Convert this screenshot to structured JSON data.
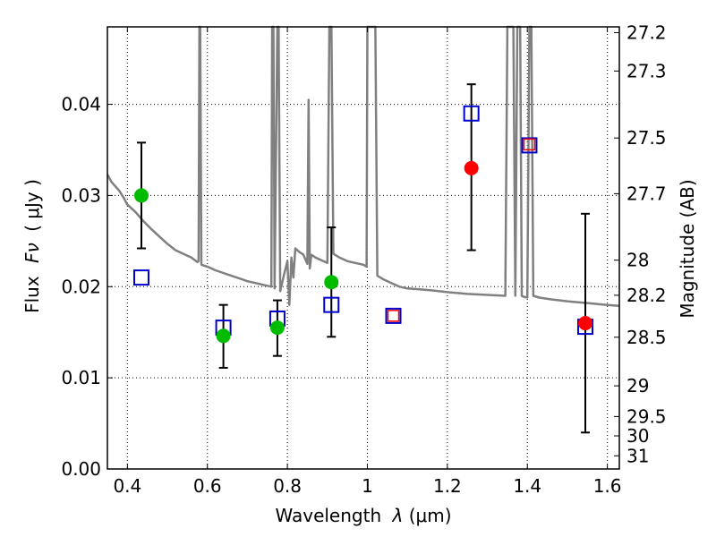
{
  "chart_data": {
    "type": "scatter",
    "xlabel_prefix": "Wavelength",
    "xlabel_symbol": "λ",
    "xlabel_unit": "(μm)",
    "ylabel_prefix": "Flux",
    "ylabel_symbol": "Fν",
    "ylabel_unit": "( μJy )",
    "y2label": "Magnitude (AB)",
    "xlim": [
      0.35,
      1.63
    ],
    "ylim": [
      0.0,
      0.0485
    ],
    "grid": true,
    "x_ticks": [
      0.4,
      0.6,
      0.8,
      1.0,
      1.2,
      1.4,
      1.6
    ],
    "x_tick_labels": [
      "0.4",
      "0.6",
      "0.8",
      "1",
      "1.2",
      "1.4",
      "1.6"
    ],
    "y_ticks": [
      0.0,
      0.01,
      0.02,
      0.03,
      0.04
    ],
    "y_tick_labels": [
      "0.00",
      "0.01",
      "0.02",
      "0.03",
      "0.04"
    ],
    "y2_ticks": [
      27.2,
      27.3,
      27.5,
      27.7,
      28,
      28.2,
      28.5,
      29,
      29.5,
      30,
      31
    ],
    "y2_tick_labels": [
      "27.2",
      "27.3",
      "27.5",
      "27.7",
      "28",
      "28.2",
      "28.5",
      "29",
      "29.5",
      "30",
      "31"
    ],
    "colors": {
      "model": "#808080",
      "detection": "#00bb00",
      "measurement": "#ff0000",
      "model_band": "#0000cc",
      "errorbar": "#000000"
    },
    "series": [
      {
        "kind": "model_sed",
        "points": [
          [
            0.35,
            0.0323
          ],
          [
            0.36,
            0.0315
          ],
          [
            0.37,
            0.031
          ],
          [
            0.38,
            0.0305
          ],
          [
            0.39,
            0.0298
          ],
          [
            0.4,
            0.029
          ],
          [
            0.42,
            0.0282
          ],
          [
            0.44,
            0.0272
          ],
          [
            0.46,
            0.0263
          ],
          [
            0.48,
            0.0255
          ],
          [
            0.5,
            0.0247
          ],
          [
            0.52,
            0.024
          ],
          [
            0.54,
            0.0236
          ],
          [
            0.56,
            0.0232
          ],
          [
            0.575,
            0.0227
          ],
          [
            0.578,
            0.0228
          ],
          [
            0.58,
            0.0485
          ],
          [
            0.582,
            0.0485
          ],
          [
            0.585,
            0.0224
          ],
          [
            0.6,
            0.0222
          ],
          [
            0.62,
            0.0218
          ],
          [
            0.64,
            0.0215
          ],
          [
            0.66,
            0.0212
          ],
          [
            0.68,
            0.0209
          ],
          [
            0.7,
            0.0206
          ],
          [
            0.72,
            0.0204
          ],
          [
            0.74,
            0.0202
          ],
          [
            0.76,
            0.02
          ],
          [
            0.762,
            0.0485
          ],
          [
            0.765,
            0.0485
          ],
          [
            0.768,
            0.0198
          ],
          [
            0.775,
            0.0485
          ],
          [
            0.778,
            0.0485
          ],
          [
            0.782,
            0.0195
          ],
          [
            0.79,
            0.021
          ],
          [
            0.8,
            0.0228
          ],
          [
            0.805,
            0.018
          ],
          [
            0.81,
            0.0232
          ],
          [
            0.815,
            0.021
          ],
          [
            0.82,
            0.0242
          ],
          [
            0.83,
            0.0238
          ],
          [
            0.84,
            0.0235
          ],
          [
            0.85,
            0.0225
          ],
          [
            0.853,
            0.0405
          ],
          [
            0.856,
            0.022
          ],
          [
            0.86,
            0.0235
          ],
          [
            0.87,
            0.0232
          ],
          [
            0.88,
            0.023
          ],
          [
            0.89,
            0.0228
          ],
          [
            0.9,
            0.0226
          ],
          [
            0.905,
            0.0485
          ],
          [
            0.91,
            0.0485
          ],
          [
            0.915,
            0.0236
          ],
          [
            0.93,
            0.0232
          ],
          [
            0.95,
            0.0228
          ],
          [
            0.97,
            0.0226
          ],
          [
            0.99,
            0.0224
          ],
          [
            0.998,
            0.0222
          ],
          [
            1.0,
            0.0485
          ],
          [
            1.02,
            0.0485
          ],
          [
            1.025,
            0.0212
          ],
          [
            1.04,
            0.0208
          ],
          [
            1.06,
            0.0204
          ],
          [
            1.08,
            0.02
          ],
          [
            1.1,
            0.0198
          ],
          [
            1.13,
            0.0197
          ],
          [
            1.16,
            0.0196
          ],
          [
            1.2,
            0.0194
          ],
          [
            1.25,
            0.0192
          ],
          [
            1.3,
            0.0191
          ],
          [
            1.345,
            0.019
          ],
          [
            1.35,
            0.0485
          ],
          [
            1.365,
            0.0485
          ],
          [
            1.37,
            0.019
          ],
          [
            1.375,
            0.0485
          ],
          [
            1.382,
            0.0485
          ],
          [
            1.386,
            0.019
          ],
          [
            1.39,
            0.0189
          ],
          [
            1.4,
            0.0188
          ],
          [
            1.405,
            0.0485
          ],
          [
            1.41,
            0.0485
          ],
          [
            1.415,
            0.019
          ],
          [
            1.43,
            0.0188
          ],
          [
            1.46,
            0.0186
          ],
          [
            1.5,
            0.0184
          ],
          [
            1.55,
            0.0182
          ],
          [
            1.6,
            0.018
          ],
          [
            1.63,
            0.0179
          ]
        ]
      },
      {
        "kind": "model_band_flux",
        "marker": "square",
        "points": [
          [
            0.435,
            0.021
          ],
          [
            0.64,
            0.0155
          ],
          [
            0.775,
            0.0165
          ],
          [
            0.91,
            0.018
          ],
          [
            1.065,
            0.0168
          ],
          [
            1.26,
            0.039
          ],
          [
            1.405,
            0.0355
          ],
          [
            1.545,
            0.0156
          ]
        ]
      },
      {
        "kind": "detection",
        "marker": "circle",
        "points": [
          {
            "x": 0.435,
            "y": 0.03,
            "err": [
              0.0242,
              0.0358
            ]
          },
          {
            "x": 0.64,
            "y": 0.0146,
            "err": [
              0.0111,
              0.018
            ]
          },
          {
            "x": 0.775,
            "y": 0.0155,
            "err": [
              0.0124,
              0.0185
            ]
          },
          {
            "x": 0.91,
            "y": 0.0205,
            "err": [
              0.0145,
              0.0265
            ]
          }
        ]
      },
      {
        "kind": "measurement",
        "marker": "circle",
        "points": [
          {
            "x": 1.26,
            "y": 0.033,
            "err": [
              0.024,
              0.0422
            ]
          },
          {
            "x": 1.545,
            "y": 0.016,
            "err": [
              0.004,
              0.028
            ]
          }
        ]
      },
      {
        "kind": "small_box",
        "marker": "small-square",
        "points": [
          [
            1.065,
            0.0168
          ],
          [
            1.405,
            0.0356
          ]
        ]
      }
    ]
  }
}
